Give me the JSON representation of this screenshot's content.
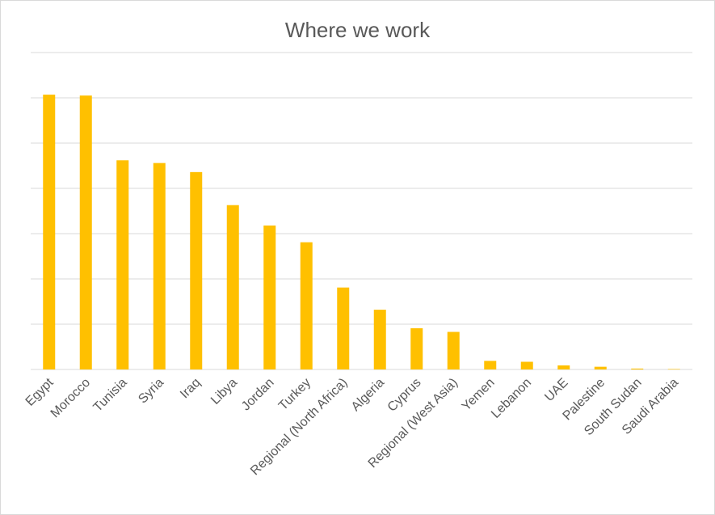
{
  "chart_data": {
    "type": "bar",
    "title": "Where we work",
    "xlabel": "",
    "ylabel": "",
    "categories": [
      "Egypt",
      "Morocco",
      "Tunisia",
      "Syria",
      "Iraq",
      "Libya",
      "Jordan",
      "Turkey",
      "Regional (North Africa)",
      "Algeria",
      "Cyprus",
      "Regional (West Asia)",
      "Yemen",
      "Lebanon",
      "UAE",
      "Palestine",
      "South Sudan",
      "Saudi Arabia"
    ],
    "values": [
      60.7,
      60.5,
      46.2,
      45.6,
      43.6,
      36.3,
      31.8,
      28.1,
      18.1,
      13.2,
      9.1,
      8.3,
      1.9,
      1.7,
      0.9,
      0.6,
      0.2,
      0.1
    ],
    "ylim": [
      0,
      70
    ],
    "grid": true,
    "legend": "none",
    "bar_color": "#FFC000",
    "grid_color": "#d9d9d9"
  }
}
